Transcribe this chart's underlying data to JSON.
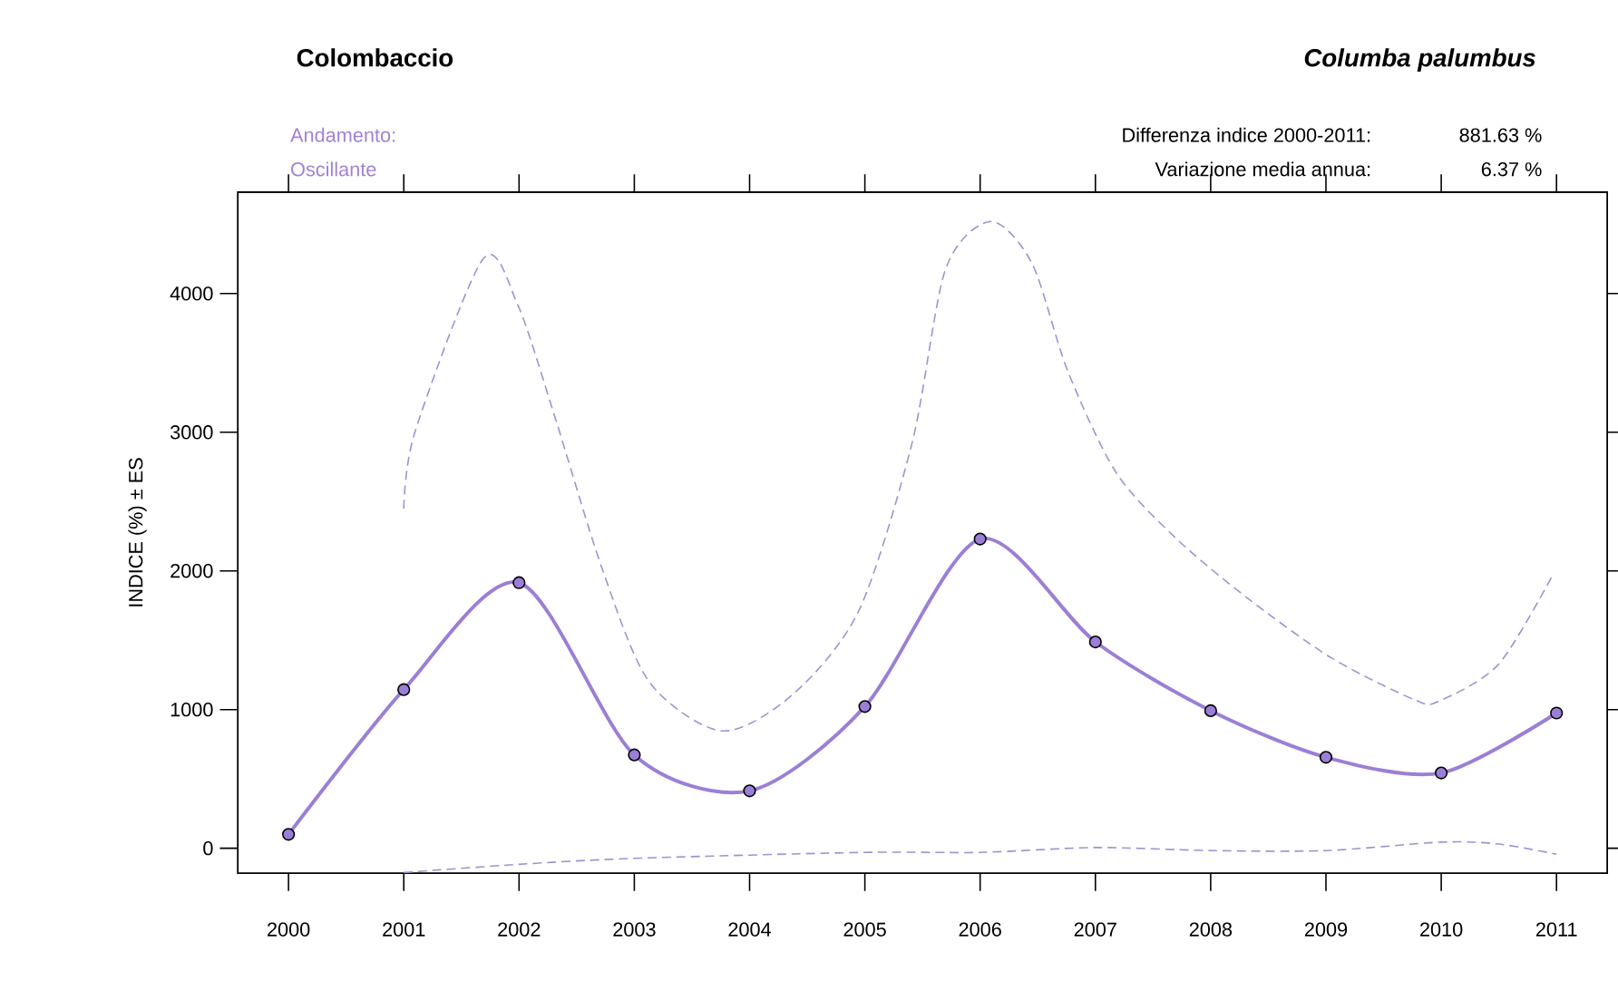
{
  "chart_data": {
    "type": "line",
    "title": "Colombaccio",
    "subtitle": "Columba palumbus",
    "annotations": [
      "Andamento:",
      "Oscillante",
      "Differenza indice 2000-2011:",
      "881.63 %",
      "Variazione media annua:",
      "6.37 %"
    ],
    "ylabel": "INDICE (%) ± ES",
    "xlim": [
      1999.56,
      2011.44
    ],
    "ylim": [
      -179,
      4731
    ],
    "xticks": [
      2000,
      2001,
      2002,
      2003,
      2004,
      2005,
      2006,
      2007,
      2008,
      2009,
      2010,
      2011
    ],
    "yticks": [
      0,
      1000,
      2000,
      3000,
      4000
    ],
    "series": [
      {
        "color": "#a48fd0",
        "line_style": "dashed",
        "marker": "none",
        "x": [
          2001,
          2001.1,
          2001.69,
          2001.99,
          2002.3,
          2002.72,
          2003.13,
          2003.76,
          2004.38,
          2004.95,
          2005.41,
          2005.7,
          2006.09,
          2006.45,
          2006.76,
          2007.18,
          2007.7,
          2008.32,
          2009.05,
          2009.77,
          2009.98,
          2010.5,
          2010.97
        ],
        "values": [
          2450,
          3010,
          4252,
          3916,
          3140,
          2018,
          1199,
          846,
          1113,
          1717,
          2924,
          4175,
          4520,
          4217,
          3441,
          2709,
          2234,
          1803,
          1371,
          1070,
          1061,
          1329,
          1975
        ]
      },
      {
        "color": "#a48fd0",
        "line_style": "dashed",
        "marker": "none",
        "x": [
          2001,
          2002,
          2003,
          2005,
          2006,
          2007,
          2008,
          2009,
          2010,
          2010.5,
          2011
        ],
        "values": [
          -175,
          -116,
          -73,
          -30,
          -30,
          5,
          -17,
          -17,
          44,
          30,
          -43
        ]
      },
      {
        "color": "#9b7fd6",
        "line_style": "solid",
        "marker": "circle",
        "x": [
          2000,
          2001,
          2002,
          2003,
          2004,
          2005,
          2006,
          2007,
          2008,
          2009,
          2010,
          2011
        ],
        "values": [
          100,
          1144,
          1915,
          673,
          414,
          1022,
          2230,
          1488,
          992,
          656,
          543,
          975
        ]
      }
    ]
  }
}
